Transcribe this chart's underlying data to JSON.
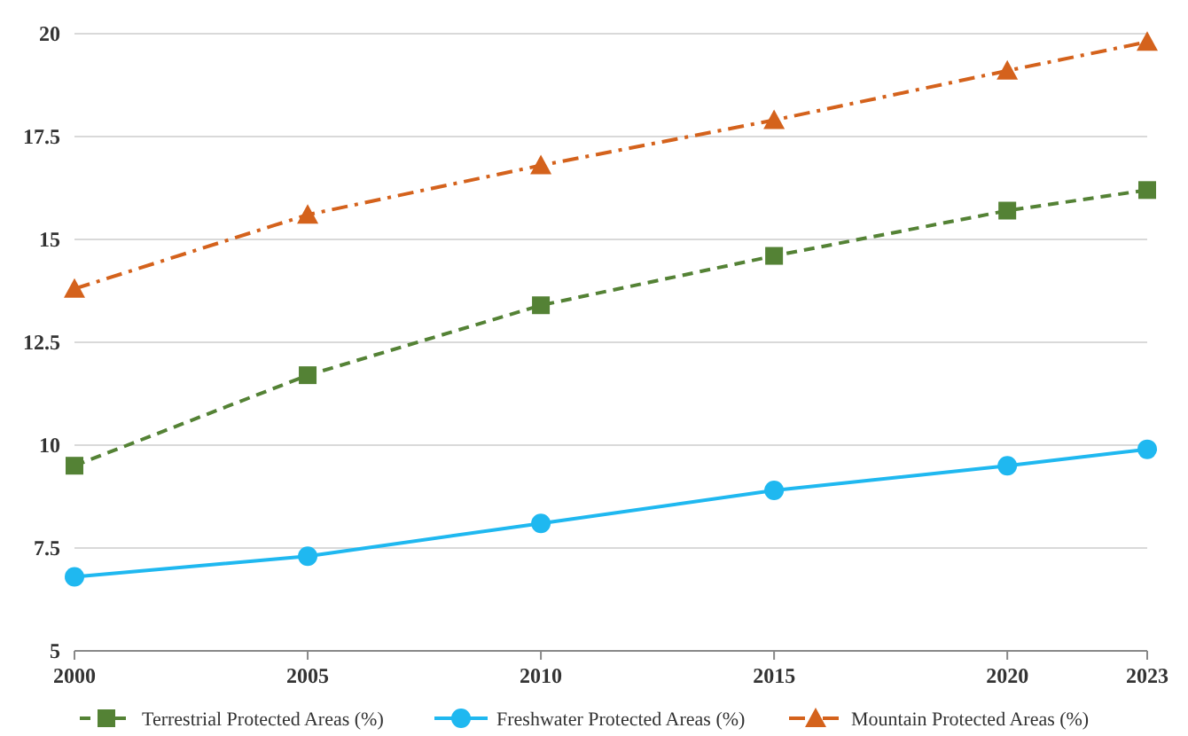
{
  "chart_data": {
    "type": "line",
    "x": [
      2000,
      2005,
      2010,
      2015,
      2020,
      2023
    ],
    "xlim": [
      2000,
      2023
    ],
    "xticks": [
      2000,
      2005,
      2010,
      2015,
      2020,
      2023
    ],
    "ylim": [
      5,
      20
    ],
    "yticks": [
      5,
      7.5,
      10,
      12.5,
      15,
      17.5,
      20
    ],
    "grid": "y",
    "legend": "bottom",
    "series": [
      {
        "name": "Terrestrial Protected Areas (%)",
        "color": "#548235",
        "values": [
          9.5,
          11.7,
          13.4,
          14.6,
          15.7,
          16.2
        ],
        "marker": "square",
        "line_style": "dashed"
      },
      {
        "name": "Freshwater Protected Areas (%)",
        "color": "#1fb8f0",
        "values": [
          6.8,
          7.3,
          8.1,
          8.9,
          9.5,
          9.9
        ],
        "marker": "circle",
        "line_style": "solid"
      },
      {
        "name": "Mountain Protected Areas (%)",
        "color": "#d4621c",
        "values": [
          13.8,
          15.6,
          16.8,
          17.9,
          19.1,
          19.8
        ],
        "marker": "triangle",
        "line_style": "dashdot"
      }
    ]
  }
}
